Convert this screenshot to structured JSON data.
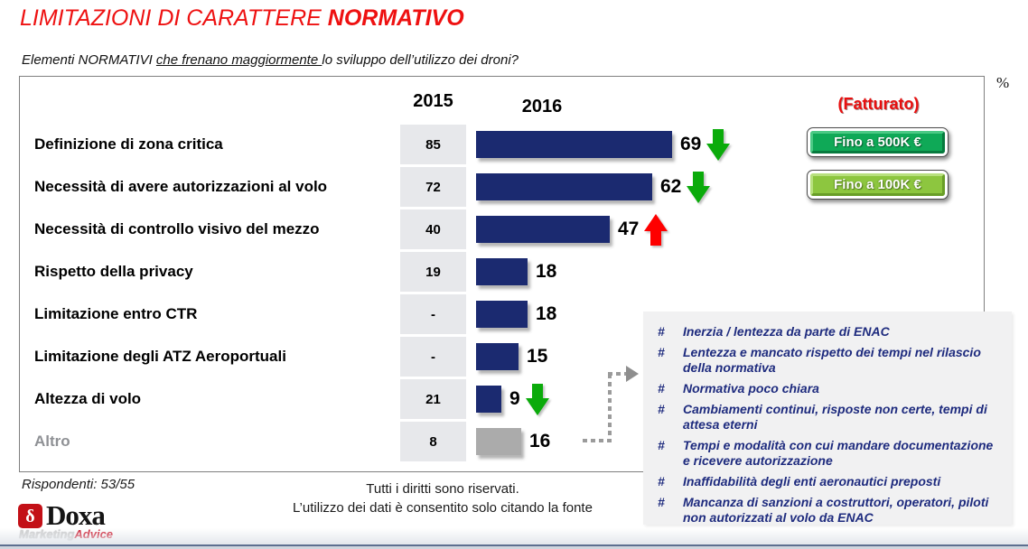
{
  "header": {
    "title_regular": "LIMITAZIONI DI CARATTERE ",
    "title_bold": "NORMATIVO",
    "question_parts": [
      "Elementi NORMATIVI ",
      "che frenano maggiormente ",
      "lo sviluppo dell’utilizzo dei droni?"
    ],
    "unit": "%"
  },
  "chart_data": {
    "type": "bar",
    "title": "Limitazioni di carattere normativo",
    "years": [
      "2015",
      "2016"
    ],
    "xlim": [
      0,
      100
    ],
    "unit": "%",
    "bar_color": "#1b2a70",
    "muted_bar_color": "#ababab",
    "trend_up_color": "#fe0000",
    "trend_down_color": "#0bab0b",
    "rows": [
      {
        "category": "Definizione di zona critica",
        "v2015": "85",
        "v2016": 69,
        "trend": "down",
        "muted": false
      },
      {
        "category": "Necessità di avere autorizzazioni al volo",
        "v2015": "72",
        "v2016": 62,
        "trend": "down",
        "muted": false
      },
      {
        "category": "Necessità di controllo visivo del mezzo",
        "v2015": "40",
        "v2016": 47,
        "trend": "up",
        "muted": false
      },
      {
        "category": "Rispetto della privacy",
        "v2015": "19",
        "v2016": 18,
        "trend": null,
        "muted": false
      },
      {
        "category": "Limitazione entro CTR",
        "v2015": "-",
        "v2016": 18,
        "trend": null,
        "muted": false
      },
      {
        "category": "Limitazione degli ATZ Aeroportuali",
        "v2015": "-",
        "v2016": 15,
        "trend": null,
        "muted": false
      },
      {
        "category": "Altezza di volo",
        "v2015": "21",
        "v2016": 9,
        "trend": "down",
        "muted": false
      },
      {
        "category": "Altro",
        "v2015": "8",
        "v2016": 16,
        "trend": null,
        "muted": true
      }
    ]
  },
  "fatturato": {
    "label": "(Fatturato)",
    "buttons": [
      "Fino a 500K €",
      "Fino a 100K €"
    ],
    "button_colors": [
      "#0fa957",
      "#8dc63f"
    ]
  },
  "notes": {
    "marker": "#",
    "text_color": "#1e2b7e",
    "items": [
      "Inerzia / lentezza da parte di ENAC",
      "Lentezza e mancato rispetto dei tempi nel rilascio della normativa",
      "Normativa poco chiara",
      "Cambiamenti continui, risposte non certe, tempi di attesa eterni",
      "Tempi e modalità con cui mandare documentazione e ricevere autorizzazione",
      "Inaffidabilità degli enti aeronautici preposti",
      "Mancanza di sanzioni a costruttori, operatori, piloti non autorizzati al volo da ENAC"
    ]
  },
  "footer": {
    "respondents": "Rispondenti: 53/55",
    "rights_line1": "Tutti i diritti sono riservati.",
    "rights_line2": "L’utilizzo dei dati è consentito solo citando la fonte",
    "logo": {
      "icon_glyph": "δ",
      "word": "Doxa",
      "sub_gray": "Marketing",
      "sub_red": "Advice"
    }
  }
}
